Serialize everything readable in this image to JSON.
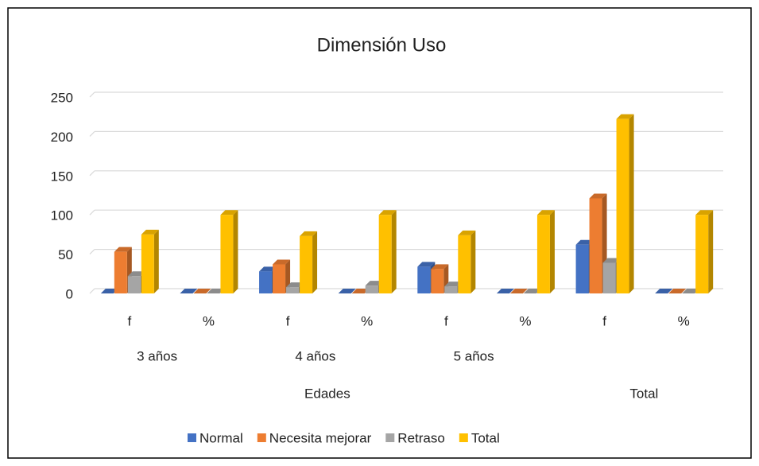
{
  "chart_data": {
    "type": "bar3d",
    "title": "Dimensión Uso",
    "categories": [
      "f",
      "%",
      "f",
      "%",
      "f",
      "%",
      "f",
      "%"
    ],
    "category_groups": [
      "3 años",
      "4 años",
      "5 años"
    ],
    "outer_groups": [
      "Edades",
      "Total"
    ],
    "series": [
      {
        "name": "Normal",
        "color": "#4472c4",
        "values": [
          0,
          0,
          28,
          0,
          34,
          0,
          62,
          0
        ]
      },
      {
        "name": "Necesita mejorar",
        "color": "#ed7d31",
        "values": [
          53,
          0,
          37,
          0,
          31,
          0,
          121,
          0
        ]
      },
      {
        "name": "Retraso",
        "color": "#a5a5a5",
        "values": [
          22,
          0,
          8,
          10,
          9,
          0,
          39,
          0
        ]
      },
      {
        "name": "Total",
        "color": "#ffc000",
        "values": [
          75,
          100,
          73,
          100,
          74,
          100,
          222,
          100
        ]
      }
    ],
    "ylim": [
      0,
      250
    ],
    "yticks": [
      0,
      50,
      100,
      150,
      200,
      250
    ],
    "grid": true,
    "legend": "bottom"
  }
}
